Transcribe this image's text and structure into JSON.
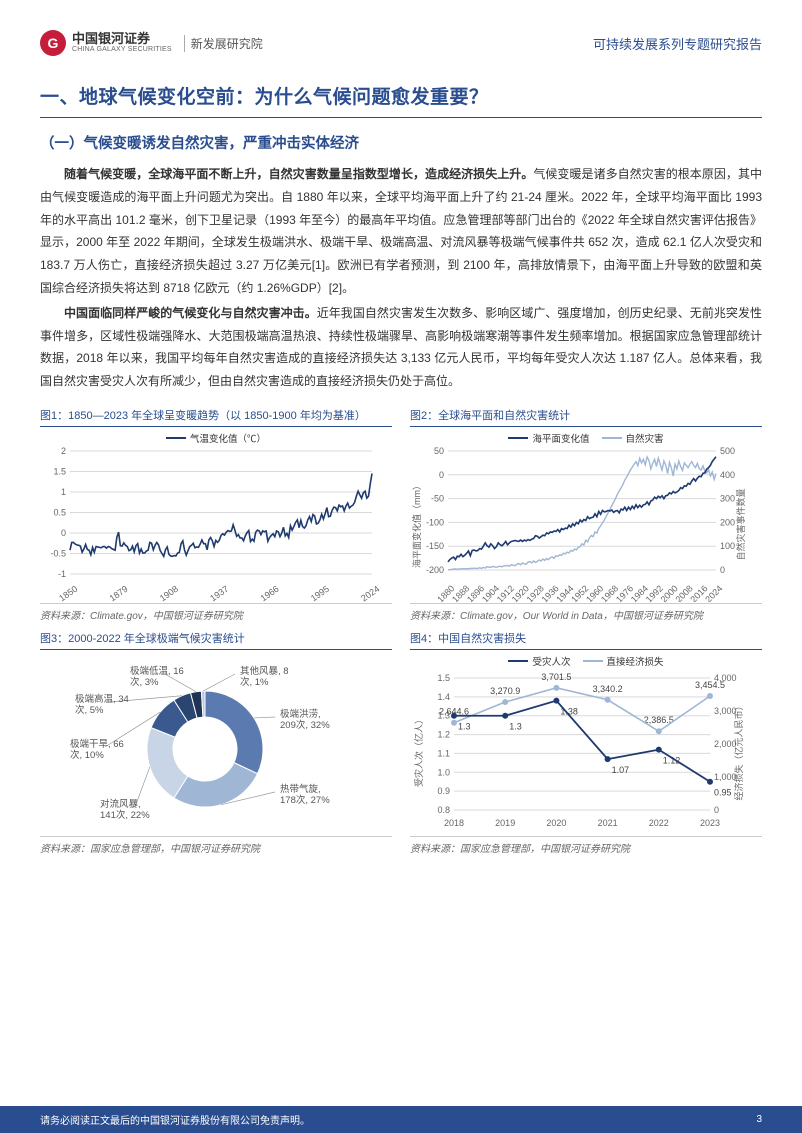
{
  "header": {
    "logo_cn": "中国银河证券",
    "logo_en": "CHINA GALAXY SECURITIES",
    "logo_sub": "新发展研究院",
    "logo_glyph": "G",
    "report_type": "可持续发展系列专题研究报告"
  },
  "colors": {
    "brand_blue": "#2a4d8f",
    "dark_line": "#1f3a6e",
    "light_line": "#9fb6d5",
    "brand_red": "#c41e3a",
    "grid": "#d9d9d9",
    "text": "#333333",
    "muted": "#666666"
  },
  "h1": "一、地球气候变化空前：为什么气候问题愈发重要？",
  "h2": "（一）气候变暖诱发自然灾害，严重冲击实体经济",
  "paragraphs": [
    {
      "bold_lead": "随着气候变暖，全球海平面不断上升，自然灾害数量呈指数型增长，造成经济损失上升。",
      "rest": "气候变暖是诸多自然灾害的根本原因，其中由气候变暖造成的海平面上升问题尤为突出。自 1880 年以来，全球平均海平面上升了约 21-24 厘米。2022 年，全球平均海平面比 1993 年的水平高出 101.2 毫米，创下卫星记录（1993 年至今）的最高年平均值。应急管理部等部门出台的《2022 年全球自然灾害评估报告》显示，2000 年至 2022 年期间，全球发生极端洪水、极端干旱、极端高温、对流风暴等极端气候事件共 652 次，造成 62.1 亿人次受灾和 183.7 万人伤亡，直接经济损失超过 3.27 万亿美元[1]。欧洲已有学者预测，到 2100 年，高排放情景下，由海平面上升导致的欧盟和英国综合经济损失将达到 8718 亿欧元（约 1.26%GDP）[2]。"
    },
    {
      "bold_lead": "中国面临同样严峻的气候变化与自然灾害冲击。",
      "rest": "近年我国自然灾害发生次数多、影响区域广、强度增加，创历史纪录、无前兆突发性事件增多，区域性极端强降水、大范围极端高温热浪、持续性极端骤旱、高影响极端寒潮等事件发生频率增加。根据国家应急管理部统计数据，2018 年以来，我国平均每年自然灾害造成的直接经济损失达 3,133 亿元人民币，平均每年受灾人次达 1.187 亿人。总体来看，我国自然灾害受灾人次有所减少，但由自然灾害造成的直接经济损失仍处于高位。"
    }
  ],
  "chart1": {
    "title": "图1：1850—2023 年全球呈变暖趋势（以 1850-1900 年均为基准）",
    "legend": "气温变化值（℃）",
    "type": "line",
    "x_start": 1850,
    "x_end": 2024,
    "x_ticks": [
      1850,
      1879,
      1908,
      1937,
      1966,
      1995,
      2024
    ],
    "ylim": [
      -1,
      2
    ],
    "y_ticks": [
      -1,
      -0.5,
      0,
      0.5,
      1,
      1.5,
      2
    ],
    "line_color": "#1f3a6e",
    "grid_color": "#d9d9d9",
    "values": [
      -0.42,
      -0.23,
      -0.23,
      -0.27,
      -0.29,
      -0.3,
      -0.32,
      -0.47,
      -0.39,
      -0.28,
      -0.4,
      -0.42,
      -0.53,
      -0.35,
      -0.47,
      -0.33,
      -0.34,
      -0.35,
      -0.36,
      -0.33,
      -0.33,
      -0.37,
      -0.33,
      -0.34,
      -0.38,
      -0.4,
      -0.42,
      -0.1,
      0.02,
      -0.31,
      -0.32,
      -0.24,
      -0.3,
      -0.33,
      -0.43,
      -0.41,
      -0.32,
      -0.46,
      -0.31,
      -0.26,
      -0.49,
      -0.39,
      -0.49,
      -0.49,
      -0.44,
      -0.42,
      -0.23,
      -0.25,
      -0.41,
      -0.3,
      -0.23,
      -0.29,
      -0.43,
      -0.5,
      -0.57,
      -0.41,
      -0.34,
      -0.52,
      -0.56,
      -0.57,
      -0.55,
      -0.56,
      -0.49,
      -0.47,
      -0.26,
      -0.19,
      -0.42,
      -0.54,
      -0.43,
      -0.33,
      -0.3,
      -0.25,
      -0.36,
      -0.34,
      -0.35,
      -0.27,
      -0.17,
      -0.26,
      -0.26,
      -0.41,
      -0.17,
      -0.11,
      -0.19,
      -0.33,
      -0.18,
      -0.23,
      -0.18,
      -0.06,
      -0.02,
      -0.05,
      0.02,
      0.06,
      0.04,
      0.05,
      0.2,
      0.07,
      -0.08,
      -0.04,
      -0.12,
      -0.12,
      -0.19,
      -0.07,
      0.01,
      0.06,
      -0.21,
      -0.15,
      -0.2,
      0.02,
      0.07,
      0.05,
      -0.04,
      0.05,
      0.03,
      0.05,
      -0.2,
      -0.11,
      -0.06,
      -0.02,
      -0.09,
      0.05,
      0.03,
      -0.09,
      0.0,
      0.14,
      -0.07,
      -0.01,
      -0.11,
      0.18,
      0.07,
      0.16,
      0.26,
      0.32,
      0.13,
      0.31,
      0.16,
      0.12,
      0.18,
      0.32,
      0.4,
      0.28,
      0.45,
      0.41,
      0.22,
      0.24,
      0.32,
      0.46,
      0.34,
      0.47,
      0.62,
      0.4,
      0.41,
      0.55,
      0.63,
      0.62,
      0.54,
      0.68,
      0.64,
      0.66,
      0.54,
      0.66,
      0.73,
      0.61,
      0.65,
      0.68,
      0.75,
      0.9,
      1.02,
      0.93,
      0.85,
      0.98,
      1.02,
      0.85,
      0.9,
      1.2,
      1.45
    ],
    "source": "资料来源：Climate.gov，中国银河证券研究院"
  },
  "chart2": {
    "title": "图2：全球海平面和自然灾害统计",
    "legend1": "海平面变化值",
    "legend2": "自然灾害",
    "type": "dual-line",
    "x_ticks": [
      1880,
      1888,
      1896,
      1904,
      1912,
      1920,
      1928,
      1936,
      1944,
      1952,
      1960,
      1968,
      1976,
      1984,
      1992,
      2000,
      2008,
      2016,
      2024
    ],
    "y1_lim": [
      -200,
      50
    ],
    "y1_ticks": [
      -200,
      -150,
      -100,
      -50,
      0,
      50
    ],
    "y2_lim": [
      0,
      500
    ],
    "y2_ticks": [
      0,
      100,
      200,
      300,
      400,
      500
    ],
    "y1_label": "海平面变化值（mm）",
    "y2_label": "自然灾害事件数量",
    "line1_color": "#1f3a6e",
    "line2_color": "#9fb6d5",
    "y1_values": [
      -183,
      -178,
      -175,
      -173,
      -178,
      -171,
      -172,
      -167,
      -172,
      -169,
      -165,
      -160,
      -170,
      -159,
      -158,
      -160,
      -159,
      -155,
      -156,
      -150,
      -143,
      -149,
      -152,
      -145,
      -149,
      -155,
      -151,
      -143,
      -147,
      -149,
      -145,
      -140,
      -147,
      -143,
      -140,
      -139,
      -138,
      -139,
      -140,
      -137,
      -140,
      -137,
      -139,
      -136,
      -138,
      -135,
      -134,
      -128,
      -129,
      -133,
      -130,
      -127,
      -128,
      -122,
      -124,
      -120,
      -121,
      -118,
      -119,
      -115,
      -120,
      -113,
      -115,
      -112,
      -113,
      -106,
      -110,
      -103,
      -107,
      -100,
      -103,
      -95,
      -99,
      -94,
      -96,
      -88,
      -92,
      -90,
      -89,
      -82,
      -88,
      -77,
      -83,
      -75,
      -78,
      -77,
      -75,
      -76,
      -74,
      -79,
      -76,
      -75,
      -80,
      -72,
      -74,
      -68,
      -75,
      -68,
      -73,
      -66,
      -71,
      -63,
      -69,
      -64,
      -68,
      -63,
      -62,
      -57,
      -63,
      -55,
      -53,
      -47,
      -50,
      -45,
      -48,
      -44,
      -50,
      -44,
      -43,
      -38,
      -40,
      -35,
      -38,
      -36,
      -33,
      -27,
      -29,
      -23,
      -24,
      -18,
      -20,
      -13,
      -8,
      -13,
      -7,
      -3,
      -4,
      3,
      4,
      12,
      15,
      20,
      28,
      33,
      38
    ],
    "y2_values": [
      2,
      1,
      3,
      4,
      5,
      3,
      5,
      4,
      6,
      5,
      6,
      5,
      7,
      6,
      8,
      6,
      7,
      9,
      7,
      11,
      8,
      14,
      12,
      11,
      15,
      13,
      12,
      14,
      16,
      13,
      18,
      17,
      19,
      16,
      22,
      20,
      18,
      24,
      27,
      22,
      29,
      26,
      24,
      33,
      35,
      30,
      38,
      32,
      36,
      42,
      38,
      46,
      40,
      48,
      43,
      52,
      55,
      49,
      60,
      57,
      64,
      61,
      70,
      68,
      75,
      72,
      82,
      79,
      88,
      85,
      95,
      98,
      110,
      105,
      125,
      118,
      135,
      145,
      140,
      160,
      155,
      175,
      185,
      198,
      210,
      225,
      240,
      255,
      270,
      285,
      300,
      318,
      332,
      345,
      360,
      378,
      390,
      405,
      420,
      432,
      445,
      455,
      438,
      470,
      450,
      465,
      442,
      475,
      460,
      425,
      448,
      465,
      435,
      470,
      445,
      420,
      458,
      440,
      405,
      452,
      430,
      395,
      445,
      425,
      458,
      435,
      418,
      450,
      440,
      430,
      445,
      455,
      440,
      430,
      448,
      425,
      420,
      438,
      415,
      408,
      422,
      395,
      412,
      380,
      405
    ],
    "source": "资料来源：Climate.gov，Our World in Data，中国银河证券研究院"
  },
  "chart3": {
    "title": "图3：2000-2022 年全球极端气候灾害统计",
    "type": "donut",
    "slices": [
      {
        "label": "极端洪涝,\n209次, 32%",
        "value": 32,
        "color": "#5a7ab0"
      },
      {
        "label": "热带气旋,\n178次, 27%",
        "value": 27,
        "color": "#9fb6d5"
      },
      {
        "label": "对流风暴,\n141次, 22%",
        "value": 22,
        "color": "#c8d5e6"
      },
      {
        "label": "极端干旱, 66\n次, 10%",
        "value": 10,
        "color": "#3a5a8f"
      },
      {
        "label": "极端高温, 34\n次, 5%",
        "value": 5,
        "color": "#2a4570"
      },
      {
        "label": "极端低温, 16\n次, 3%",
        "value": 3,
        "color": "#1f3355"
      },
      {
        "label": "其他风暴, 8\n次, 1%",
        "value": 1,
        "color": "#b8c8de"
      }
    ],
    "source": "资料来源：国家应急管理部，中国银河证券研究院"
  },
  "chart4": {
    "title": "图4：中国自然灾害损失",
    "legend1": "受灾人次",
    "legend2": "直接经济损失",
    "type": "dual-line",
    "x_ticks": [
      2018,
      2019,
      2020,
      2021,
      2022,
      2023
    ],
    "y1_lim": [
      0.8,
      1.5
    ],
    "y1_ticks": [
      0.8,
      0.9,
      1.0,
      1.1,
      1.2,
      1.3,
      1.4,
      1.5
    ],
    "y2_lim": [
      0,
      4000
    ],
    "y2_ticks": [
      0,
      1000,
      2000,
      3000,
      4000
    ],
    "y1_label": "受灾人次（亿人）",
    "y2_label": "经济损失（亿元人民币）",
    "line1_color": "#1f3a6e",
    "line2_color": "#9fb6d5",
    "y1_values": [
      1.3,
      1.3,
      1.38,
      1.07,
      1.12,
      0.95
    ],
    "y1_labels": [
      "1.3",
      "1.3",
      "1.38",
      "1.07",
      "1.12",
      "0.95"
    ],
    "y2_values": [
      2644.6,
      3270.9,
      3701.5,
      3340.2,
      2386.5,
      3454.5
    ],
    "y2_labels": [
      "2,644.6",
      "3,270.9",
      "3,701.5",
      "3,340.2",
      "2,386.5",
      "3,454.5"
    ],
    "source": "资料来源：国家应急管理部，中国银河证券研究院"
  },
  "footer": {
    "disclaimer": "请务必阅读正文最后的中国银河证券股份有限公司免责声明。",
    "page": "3"
  }
}
